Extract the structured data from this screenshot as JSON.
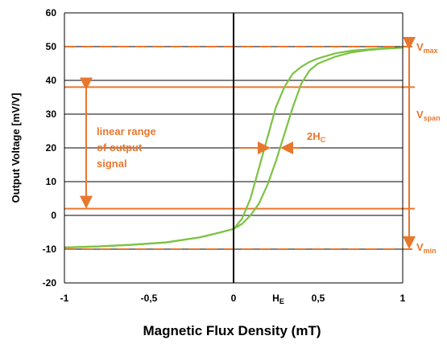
{
  "chart_data": {
    "type": "line",
    "title": "",
    "xlabel": "Magnetic Flux Density (mT)",
    "ylabel": "Output Voltage [mV/V]",
    "xlim": [
      -1,
      1
    ],
    "ylim": [
      -20,
      60
    ],
    "grid": "horizontal",
    "x_ticks": [
      {
        "value": -1,
        "label": "-1"
      },
      {
        "value": -0.5,
        "label": "-0,5"
      },
      {
        "value": 0,
        "label": "0"
      },
      {
        "value": 0.5,
        "label": "0,5"
      },
      {
        "value": 1,
        "label": "1"
      }
    ],
    "y_ticks": [
      {
        "value": -20,
        "label": "-20"
      },
      {
        "value": -10,
        "label": "-10"
      },
      {
        "value": 0,
        "label": "0"
      },
      {
        "value": 10,
        "label": "10"
      },
      {
        "value": 20,
        "label": "20"
      },
      {
        "value": 30,
        "label": "30"
      },
      {
        "value": 40,
        "label": "40"
      },
      {
        "value": 50,
        "label": "50"
      },
      {
        "value": 60,
        "label": "60"
      }
    ],
    "series": [
      {
        "color": "#7cc242",
        "x": [
          -1,
          -0.8,
          -0.6,
          -0.4,
          -0.2,
          -0.1,
          0,
          0.05,
          0.1,
          0.15,
          0.2,
          0.25,
          0.3,
          0.35,
          0.4,
          0.45,
          0.5,
          0.6,
          0.7,
          0.8,
          0.9,
          1
        ],
        "y": [
          -9.5,
          -9.2,
          -8.7,
          -8,
          -6.5,
          -5.3,
          -4,
          -1,
          5,
          14,
          23,
          32,
          38,
          42,
          44,
          45.5,
          46.5,
          48,
          48.8,
          49.2,
          49.5,
          49.7
        ]
      },
      {
        "color": "#7cc242",
        "x": [
          -1,
          -0.8,
          -0.6,
          -0.4,
          -0.2,
          -0.1,
          0,
          0.05,
          0.1,
          0.15,
          0.2,
          0.25,
          0.3,
          0.35,
          0.4,
          0.45,
          0.5,
          0.6,
          0.7,
          0.8,
          0.9,
          1
        ],
        "y": [
          -9.5,
          -9.2,
          -8.7,
          -8,
          -6.5,
          -5.3,
          -4,
          -2.5,
          0,
          3.5,
          9,
          16,
          24,
          32,
          39,
          43,
          45,
          47,
          48.3,
          49,
          49.4,
          49.7
        ]
      }
    ],
    "reference_lines": {
      "dashed": [
        50,
        -10
      ],
      "solid": [
        38,
        2
      ],
      "vertical": 0
    },
    "annotations": {
      "linear_range": [
        "linear range",
        "of output",
        "signal"
      ],
      "coercive": {
        "text": "2H",
        "sub": "C"
      },
      "he": {
        "text": "H",
        "sub": "E",
        "x": 0.25
      },
      "vmax": {
        "text": "V",
        "sub": "max",
        "y": 50
      },
      "vspan": {
        "text": "V",
        "sub": "span",
        "y": 30
      },
      "vmin": {
        "text": "V",
        "sub": "min",
        "y": -10
      }
    },
    "colors": {
      "annotation": "#e8772e",
      "curve": "#7cc242",
      "grid": "#000000"
    }
  }
}
